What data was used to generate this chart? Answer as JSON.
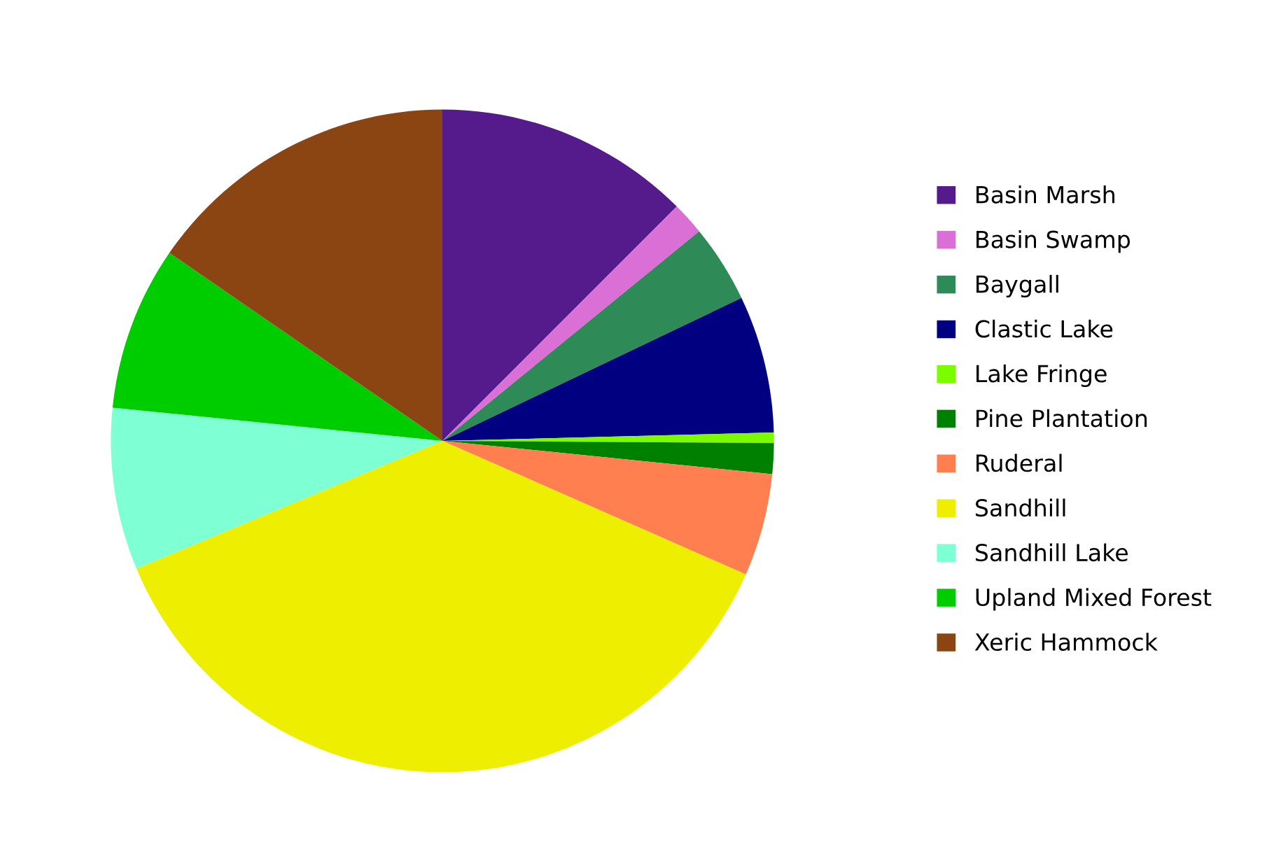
{
  "chart_data": {
    "type": "pie",
    "categories": [
      "Basin Marsh",
      "Basin Swamp",
      "Baygall",
      "Clastic Lake",
      "Lake Fringe",
      "Pine Plantation",
      "Ruderal",
      "Sandhill",
      "Sandhill Lake",
      "Upland Mixed Forest",
      "Xeric Hammock"
    ],
    "values": [
      12.5,
      1.6,
      3.8,
      6.7,
      0.5,
      1.5,
      5.0,
      37.1,
      7.9,
      8.0,
      15.4
    ],
    "colors": [
      "#551a8b",
      "#da70d6",
      "#2e8b57",
      "#000080",
      "#7cfc00",
      "#008000",
      "#ff7f50",
      "#eeee00",
      "#7fffd4",
      "#00cd00",
      "#8b4513"
    ],
    "legend": "right"
  }
}
